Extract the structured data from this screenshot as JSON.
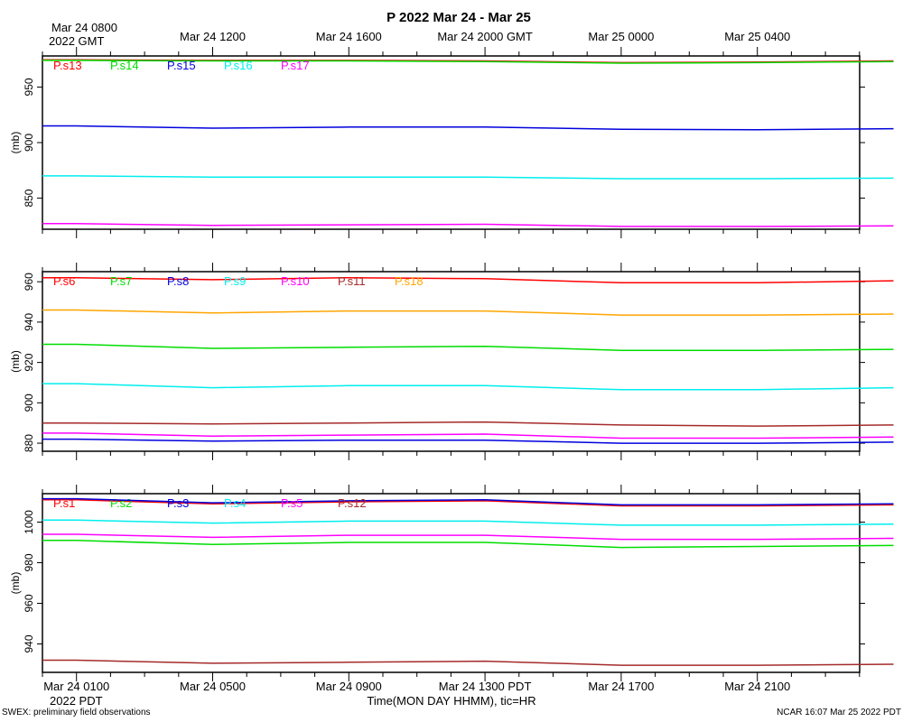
{
  "title": "P 2022 Mar 24 - Mar 25",
  "footer_left": "SWEX: preliminary field observations",
  "footer_right": "NCAR 16:07 Mar 25 2022 PDT",
  "xaxis": {
    "top_first": [
      "Mar 24 0800",
      "2022 GMT"
    ],
    "top_labels": [
      "Mar 24 1200",
      "Mar 24 1600",
      "Mar 24 2000 GMT",
      "Mar 25 0000",
      "Mar 25 0400"
    ],
    "bottom_first": [
      "Mar 24 0100",
      "2022 PDT"
    ],
    "bottom_labels": [
      "Mar 24 0500",
      "Mar 24 0900",
      "Mar 24 1300 PDT",
      "Mar 24 1700",
      "Mar 24 2100"
    ],
    "xlabel": "Time(MON DAY HHMM), tic=HR",
    "range_hours_pdt": [
      0,
      24
    ],
    "label_step_hours": 4
  },
  "chart_data": [
    {
      "type": "line",
      "ylabel": "(mb)",
      "ylim": [
        822,
        978
      ],
      "yticks": [
        850,
        900,
        950
      ],
      "x": [
        0,
        4,
        8,
        12,
        16,
        20,
        24
      ],
      "series": [
        {
          "name": "P.s13",
          "color": "#ff0000",
          "values": [
            974.5,
            974,
            974,
            973.5,
            972,
            972.5,
            973.5
          ]
        },
        {
          "name": "P.s14",
          "color": "#00dd00",
          "values": [
            974,
            973.5,
            973.5,
            973,
            971.5,
            972,
            973
          ]
        },
        {
          "name": "P.s15",
          "color": "#0000dd",
          "values": [
            915,
            913,
            914,
            914,
            912,
            911.5,
            912.5
          ]
        },
        {
          "name": "P.s16",
          "color": "#00eeee",
          "values": [
            870,
            869,
            869,
            869,
            867.5,
            867.5,
            868
          ]
        },
        {
          "name": "P.s17",
          "color": "#ff00ff",
          "values": [
            827,
            825.5,
            826,
            826.5,
            824.5,
            824.5,
            825
          ]
        }
      ]
    },
    {
      "type": "line",
      "ylabel": "(mb)",
      "ylim": [
        876,
        965
      ],
      "yticks": [
        880,
        900,
        920,
        940,
        960
      ],
      "x": [
        0,
        4,
        8,
        12,
        16,
        20,
        24
      ],
      "series": [
        {
          "name": "P.s6",
          "color": "#ff0000",
          "values": [
            962,
            961,
            962,
            961.5,
            959.5,
            959.5,
            960.5
          ]
        },
        {
          "name": "P.s7",
          "color": "#00dd00",
          "values": [
            929,
            927,
            927.5,
            928,
            926,
            926,
            926.5
          ]
        },
        {
          "name": "P.s8",
          "color": "#0000dd",
          "values": [
            882,
            881,
            881.5,
            881.5,
            880,
            880,
            880.5
          ]
        },
        {
          "name": "P.s9",
          "color": "#00eeee",
          "values": [
            909.5,
            907.5,
            908.5,
            908.5,
            906.5,
            906.5,
            907.5
          ]
        },
        {
          "name": "P.s10",
          "color": "#ff00ff",
          "values": [
            885,
            883.5,
            884,
            884.5,
            882.5,
            882.5,
            883
          ]
        },
        {
          "name": "P.s11",
          "color": "#a52a2a",
          "values": [
            890,
            889.5,
            890,
            890.5,
            889,
            888.5,
            889
          ]
        },
        {
          "name": "P.s18",
          "color": "#ffa500",
          "values": [
            946,
            944.5,
            945.5,
            945.5,
            943.5,
            943.5,
            944
          ]
        }
      ]
    },
    {
      "type": "line",
      "ylabel": "(mb)",
      "ylim": [
        926,
        1014
      ],
      "yticks": [
        940,
        960,
        980,
        1000
      ],
      "x": [
        0,
        4,
        8,
        12,
        16,
        20,
        24
      ],
      "series": [
        {
          "name": "P.s1",
          "color": "#ff0000",
          "values": [
            1011,
            1009,
            1010,
            1010.5,
            1008,
            1008,
            1008.5
          ]
        },
        {
          "name": "P.s2",
          "color": "#00dd00",
          "values": [
            991,
            989,
            990,
            990,
            987.5,
            988,
            988.5
          ]
        },
        {
          "name": "P.s3",
          "color": "#0000dd",
          "values": [
            1011.5,
            1009.5,
            1010.5,
            1011,
            1008.5,
            1008.5,
            1009
          ]
        },
        {
          "name": "P.s4",
          "color": "#00eeee",
          "values": [
            1001,
            999.5,
            1000.5,
            1000.5,
            998.5,
            998.5,
            999
          ]
        },
        {
          "name": "P.s5",
          "color": "#ff00ff",
          "values": [
            994,
            992.5,
            993.5,
            993.5,
            991.5,
            991.5,
            992
          ]
        },
        {
          "name": "P.s12",
          "color": "#a52a2a",
          "values": [
            932,
            930.5,
            931,
            931.5,
            929.5,
            929.5,
            930
          ]
        }
      ]
    }
  ]
}
